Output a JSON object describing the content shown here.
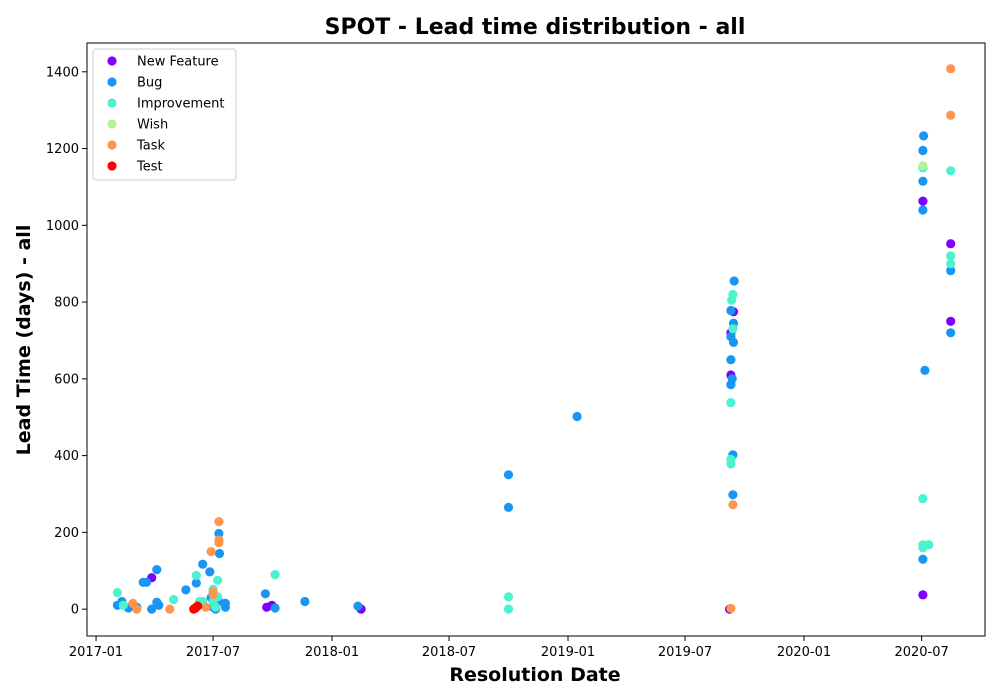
{
  "chart_data": {
    "type": "scatter",
    "title": "SPOT - Lead time distribution - all",
    "xlabel": "Resolution Date",
    "ylabel": "Lead Time (days) - all",
    "xlim": [
      "2016-12-18",
      "2020-10-07"
    ],
    "ylim": [
      -70,
      1475
    ],
    "x_ticks": [
      "2017-01",
      "2017-07",
      "2018-01",
      "2018-07",
      "2019-01",
      "2019-07",
      "2020-01",
      "2020-07"
    ],
    "y_ticks": [
      0,
      200,
      400,
      600,
      800,
      1000,
      1200,
      1400
    ],
    "legend_position": "top-left",
    "grid": false,
    "series": [
      {
        "name": "New Feature",
        "color": "#8000ff",
        "points": [
          [
            "2017-03-28",
            82
          ],
          [
            "2017-09-22",
            5
          ],
          [
            "2017-09-30",
            10
          ],
          [
            "2018-02-15",
            0
          ],
          [
            "2019-09-08",
            0
          ],
          [
            "2019-09-10",
            610
          ],
          [
            "2019-09-10",
            720
          ],
          [
            "2019-09-14",
            775
          ],
          [
            "2020-07-03",
            1063
          ],
          [
            "2020-07-03",
            37
          ],
          [
            "2020-08-15",
            952
          ],
          [
            "2020-08-15",
            750
          ]
        ]
      },
      {
        "name": "Bug",
        "color": "#1996f3",
        "points": [
          [
            "2017-02-03",
            10
          ],
          [
            "2017-02-10",
            20
          ],
          [
            "2017-02-20",
            3
          ],
          [
            "2017-03-05",
            5
          ],
          [
            "2017-03-15",
            70
          ],
          [
            "2017-03-20",
            70
          ],
          [
            "2017-03-28",
            0
          ],
          [
            "2017-04-05",
            103
          ],
          [
            "2017-04-05",
            18
          ],
          [
            "2017-04-08",
            10
          ],
          [
            "2017-05-20",
            50
          ],
          [
            "2017-06-05",
            68
          ],
          [
            "2017-06-15",
            117
          ],
          [
            "2017-06-26",
            97
          ],
          [
            "2017-06-28",
            30
          ],
          [
            "2017-07-01",
            5
          ],
          [
            "2017-07-05",
            0
          ],
          [
            "2017-07-10",
            20
          ],
          [
            "2017-07-10",
            197
          ],
          [
            "2017-07-11",
            145
          ],
          [
            "2017-07-20",
            5
          ],
          [
            "2017-07-20",
            15
          ],
          [
            "2017-09-20",
            40
          ],
          [
            "2017-10-05",
            3
          ],
          [
            "2017-11-20",
            20
          ],
          [
            "2018-02-10",
            8
          ],
          [
            "2018-10-01",
            350
          ],
          [
            "2018-10-01",
            265
          ],
          [
            "2019-01-15",
            502
          ],
          [
            "2019-09-10",
            778
          ],
          [
            "2019-09-10",
            710
          ],
          [
            "2019-09-10",
            650
          ],
          [
            "2019-09-10",
            585
          ],
          [
            "2019-09-12",
            600
          ],
          [
            "2019-09-13",
            402
          ],
          [
            "2019-09-13",
            298
          ],
          [
            "2019-09-14",
            745
          ],
          [
            "2019-09-14",
            695
          ],
          [
            "2019-09-15",
            855
          ],
          [
            "2020-07-04",
            1233
          ],
          [
            "2020-07-03",
            1195
          ],
          [
            "2020-07-03",
            1150
          ],
          [
            "2020-07-03",
            1115
          ],
          [
            "2020-07-03",
            1040
          ],
          [
            "2020-07-06",
            622
          ],
          [
            "2020-07-03",
            130
          ],
          [
            "2020-08-15",
            882
          ],
          [
            "2020-08-15",
            720
          ]
        ]
      },
      {
        "name": "Improvement",
        "color": "#4df3ce",
        "points": [
          [
            "2017-02-03",
            43
          ],
          [
            "2017-02-12",
            10
          ],
          [
            "2017-05-01",
            25
          ],
          [
            "2017-06-05",
            88
          ],
          [
            "2017-06-10",
            20
          ],
          [
            "2017-06-15",
            20
          ],
          [
            "2017-07-01",
            52
          ],
          [
            "2017-07-01",
            20
          ],
          [
            "2017-07-05",
            5
          ],
          [
            "2017-07-08",
            75
          ],
          [
            "2017-07-08",
            32
          ],
          [
            "2017-10-05",
            90
          ],
          [
            "2018-10-01",
            32
          ],
          [
            "2018-10-01",
            0
          ],
          [
            "2019-09-10",
            538
          ],
          [
            "2019-09-10",
            390
          ],
          [
            "2019-09-10",
            378
          ],
          [
            "2019-09-11",
            805
          ],
          [
            "2019-09-13",
            820
          ],
          [
            "2019-09-13",
            730
          ],
          [
            "2020-07-03",
            1150
          ],
          [
            "2020-07-03",
            288
          ],
          [
            "2020-07-03",
            168
          ],
          [
            "2020-07-03",
            160
          ],
          [
            "2020-07-12",
            168
          ],
          [
            "2020-08-15",
            1142
          ],
          [
            "2020-08-15",
            920
          ],
          [
            "2020-08-15",
            900
          ]
        ]
      },
      {
        "name": "Wish",
        "color": "#b3f396",
        "points": [
          [
            "2020-07-03",
            1155
          ]
        ]
      },
      {
        "name": "Task",
        "color": "#ff964f",
        "points": [
          [
            "2017-02-27",
            15
          ],
          [
            "2017-03-05",
            0
          ],
          [
            "2017-04-25",
            0
          ],
          [
            "2017-06-20",
            5
          ],
          [
            "2017-06-28",
            150
          ],
          [
            "2017-07-01",
            38
          ],
          [
            "2017-07-01",
            45
          ],
          [
            "2017-07-10",
            228
          ],
          [
            "2017-07-10",
            180
          ],
          [
            "2017-07-10",
            173
          ],
          [
            "2019-09-10",
            2
          ],
          [
            "2019-09-13",
            272
          ],
          [
            "2020-08-15",
            1408
          ],
          [
            "2020-08-15",
            1287
          ]
        ]
      },
      {
        "name": "Test",
        "color": "#ff0000",
        "points": [
          [
            "2017-06-01",
            0
          ],
          [
            "2017-06-03",
            2
          ],
          [
            "2017-06-05",
            5
          ],
          [
            "2017-06-07",
            8
          ]
        ]
      }
    ]
  }
}
